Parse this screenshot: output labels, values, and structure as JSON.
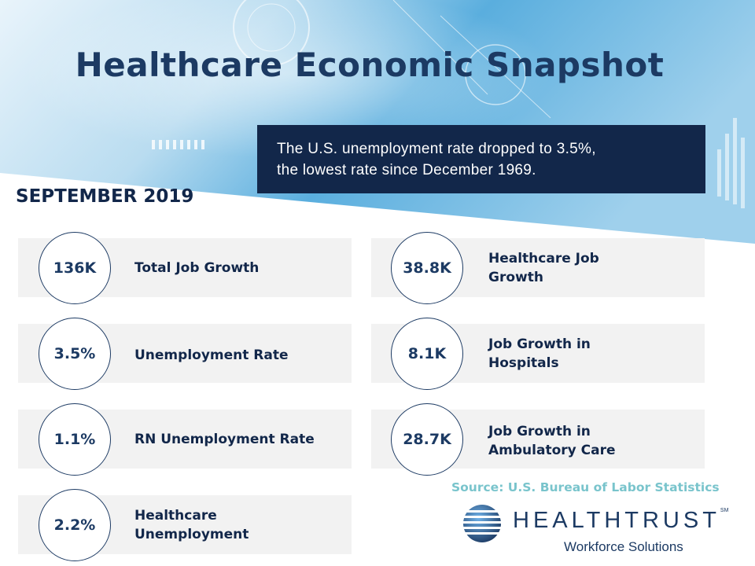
{
  "header": {
    "title": "Healthcare Economic Snapshot",
    "banner_line1": "The U.S. unemployment rate dropped to 3.5%,",
    "banner_line2": "the lowest rate since December 1969."
  },
  "period": "SEPTEMBER 2019",
  "stats_left": [
    {
      "value": "136K",
      "label": "Total Job Growth"
    },
    {
      "value": "3.5%",
      "label": "Unemployment Rate"
    },
    {
      "value": "1.1%",
      "label": "RN Unemployment Rate"
    },
    {
      "value": "2.2%",
      "label_line1": "Healthcare",
      "label_line2": "Unemployment"
    }
  ],
  "stats_right": [
    {
      "value": "38.8K",
      "label_line1": "Healthcare Job",
      "label_line2": "Growth"
    },
    {
      "value": "8.1K",
      "label_line1": "Job Growth in",
      "label_line2": "Hospitals"
    },
    {
      "value": "28.7K",
      "label_line1": "Job Growth in",
      "label_line2": "Ambulatory Care"
    }
  ],
  "source": "Source: U.S. Bureau of Labor Statistics",
  "logo": {
    "name": "HEALTHTRUST",
    "trademark": "SM",
    "subtitle": "Workforce Solutions"
  },
  "colors": {
    "navy": "#12274a",
    "title_blue": "#1c3a63",
    "card_gray": "#f2f2f2",
    "source_teal": "#79c4cc",
    "hero_blue": "#4aa3d6"
  }
}
